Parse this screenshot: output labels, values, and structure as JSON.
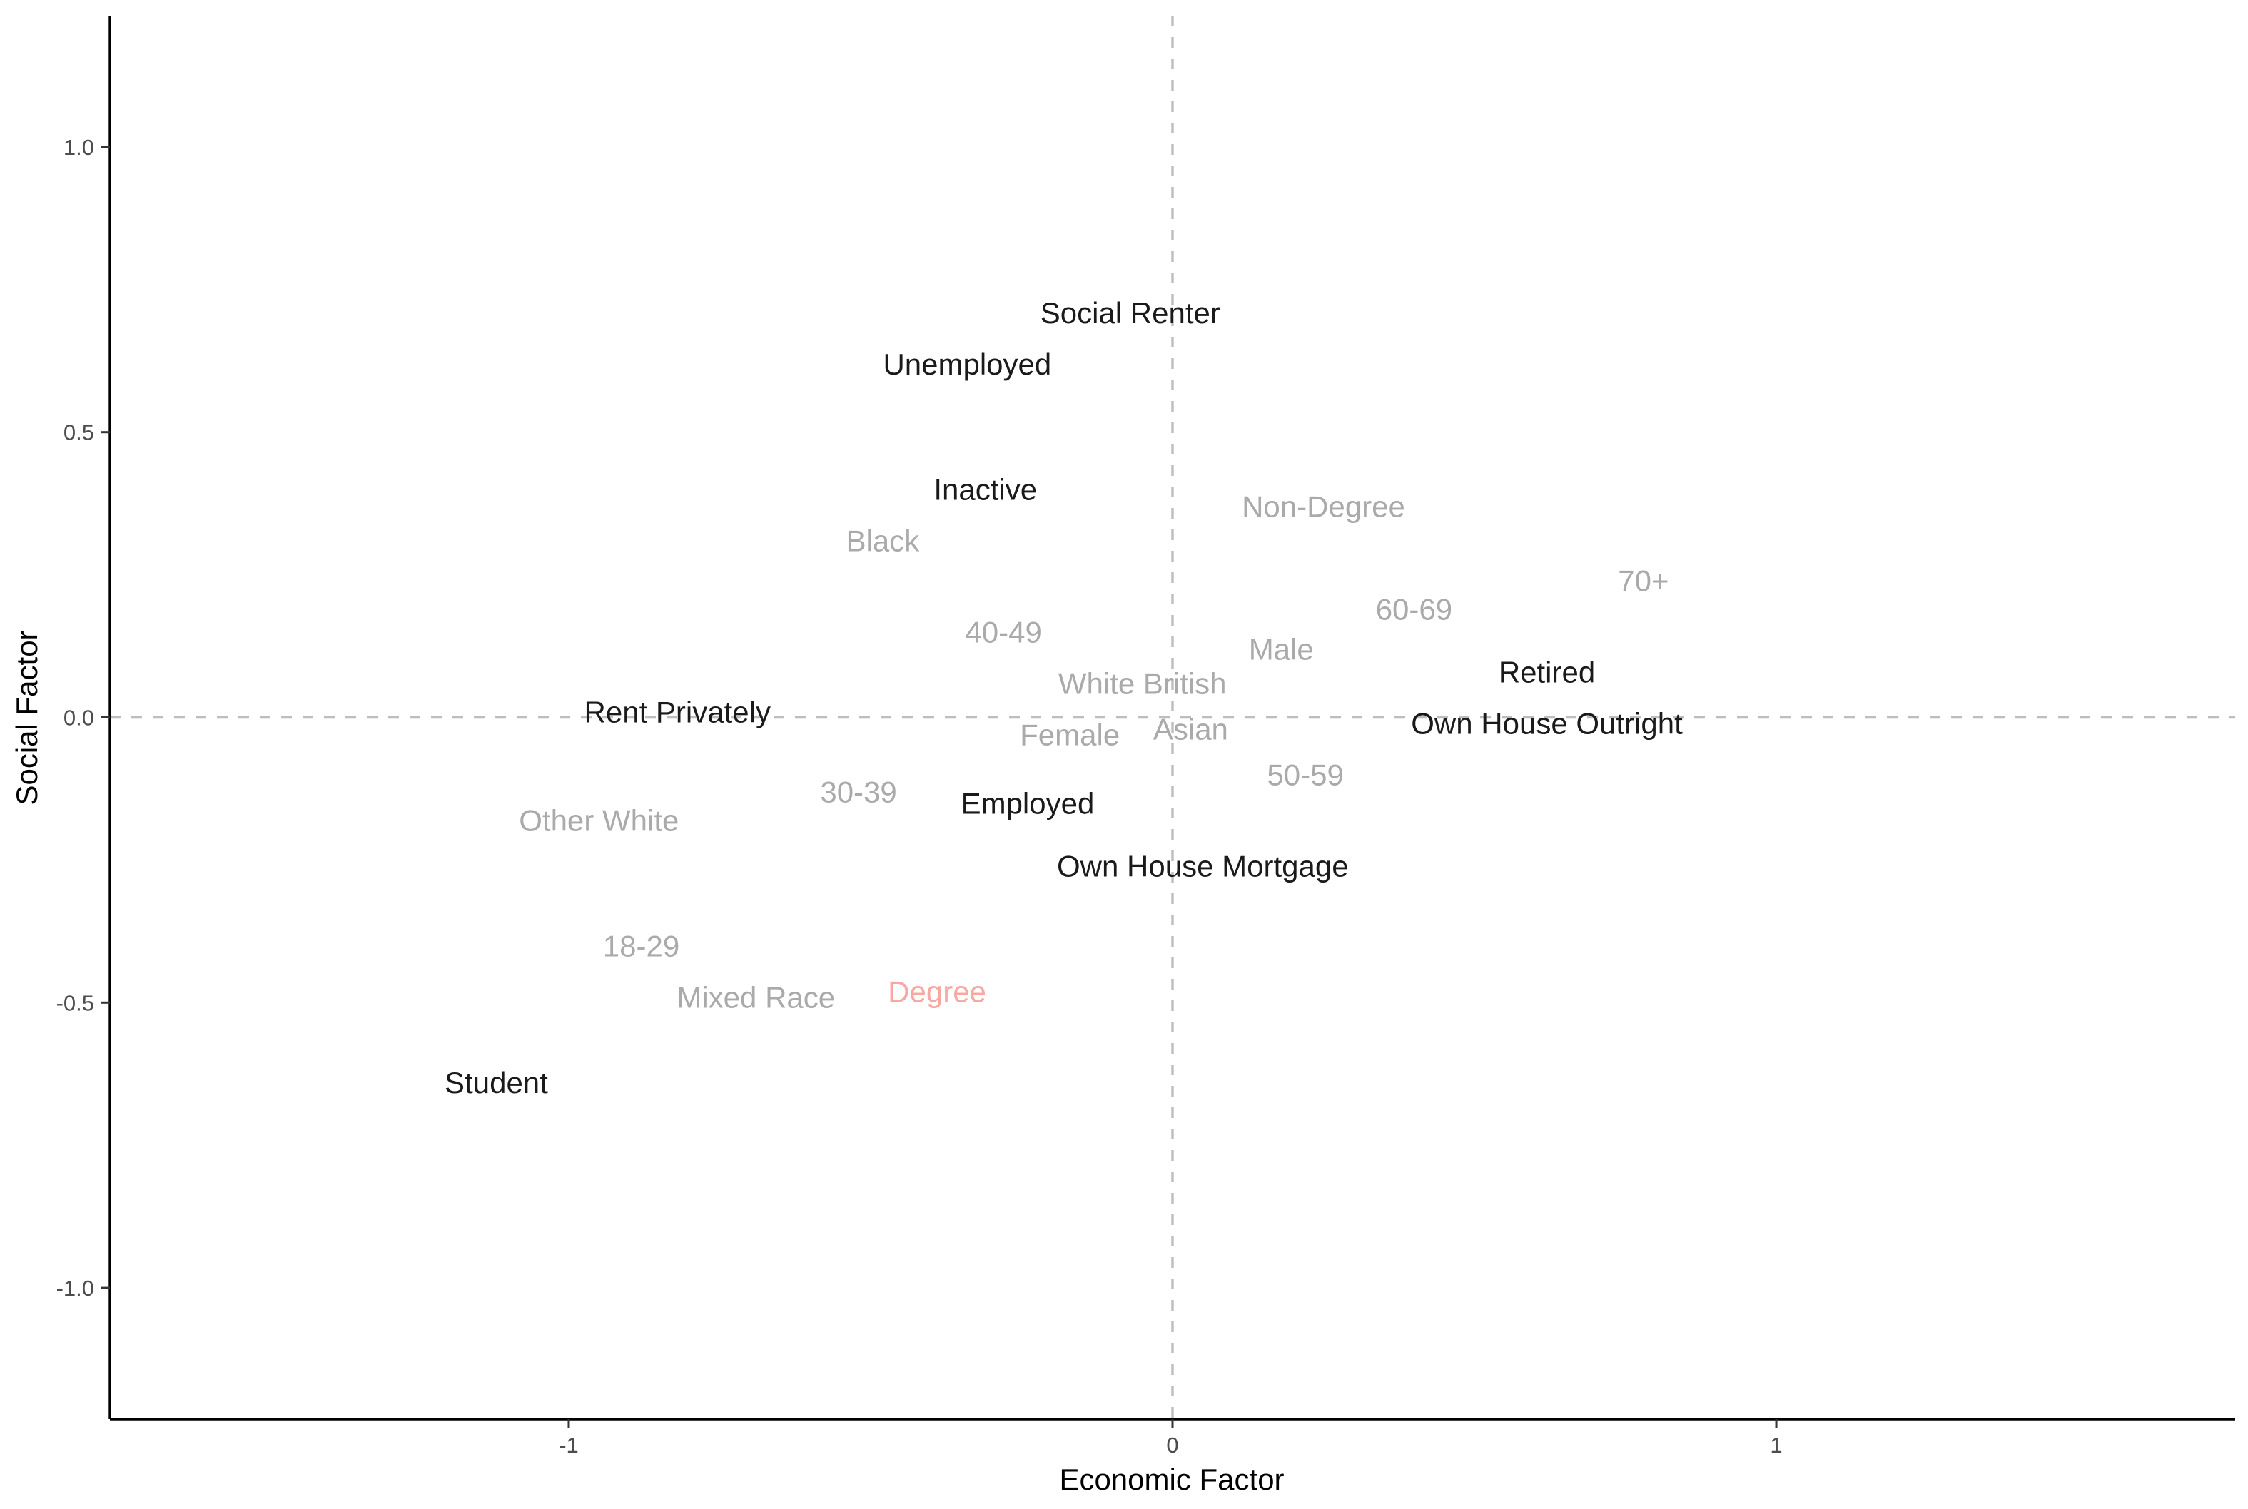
{
  "chart_data": {
    "type": "scatter",
    "xlabel": "Economic Factor",
    "ylabel": "Social Factor",
    "xlim": [
      -1.76,
      1.76
    ],
    "ylim": [
      -1.23,
      1.23
    ],
    "x_ticks": [
      -1,
      0,
      1
    ],
    "x_tick_labels": [
      "-1",
      "0",
      "1"
    ],
    "y_ticks": [
      -1.0,
      -0.5,
      0.0,
      0.5,
      1.0
    ],
    "y_tick_labels": [
      "-1.0",
      "-0.5",
      "0.0",
      "0.5",
      "1.0"
    ],
    "reference_lines": {
      "x": 0,
      "y": 0,
      "style": "dashed",
      "color": "#bdbdbd"
    },
    "grid": false,
    "colors": {
      "black_group": "#1a1a1a",
      "grey_group": "#aaaaaa",
      "highlight": "#f8a8a3"
    },
    "points": [
      {
        "label": "Social Renter",
        "x": -0.07,
        "y": 0.71,
        "group": "black_group"
      },
      {
        "label": "Unemployed",
        "x": -0.34,
        "y": 0.62,
        "group": "black_group"
      },
      {
        "label": "Inactive",
        "x": -0.31,
        "y": 0.4,
        "group": "black_group"
      },
      {
        "label": "Non-Degree",
        "x": 0.25,
        "y": 0.37,
        "group": "grey_group"
      },
      {
        "label": "Black",
        "x": -0.48,
        "y": 0.31,
        "group": "grey_group"
      },
      {
        "label": "70+",
        "x": 0.78,
        "y": 0.24,
        "group": "grey_group"
      },
      {
        "label": "60-69",
        "x": 0.4,
        "y": 0.19,
        "group": "grey_group"
      },
      {
        "label": "40-49",
        "x": -0.28,
        "y": 0.15,
        "group": "grey_group"
      },
      {
        "label": "Male",
        "x": 0.18,
        "y": 0.12,
        "group": "grey_group"
      },
      {
        "label": "Retired",
        "x": 0.62,
        "y": 0.08,
        "group": "black_group"
      },
      {
        "label": "White British",
        "x": -0.05,
        "y": 0.06,
        "group": "grey_group"
      },
      {
        "label": "Rent Privately",
        "x": -0.82,
        "y": 0.01,
        "group": "black_group"
      },
      {
        "label": "Own House Outright",
        "x": 0.62,
        "y": -0.01,
        "group": "black_group"
      },
      {
        "label": "Asian",
        "x": 0.03,
        "y": -0.02,
        "group": "grey_group"
      },
      {
        "label": "Female",
        "x": -0.17,
        "y": -0.03,
        "group": "grey_group"
      },
      {
        "label": "50-59",
        "x": 0.22,
        "y": -0.1,
        "group": "grey_group"
      },
      {
        "label": "30-39",
        "x": -0.52,
        "y": -0.13,
        "group": "grey_group"
      },
      {
        "label": "Employed",
        "x": -0.24,
        "y": -0.15,
        "group": "black_group"
      },
      {
        "label": "Other White",
        "x": -0.95,
        "y": -0.18,
        "group": "grey_group"
      },
      {
        "label": "Own House Mortgage",
        "x": 0.05,
        "y": -0.26,
        "group": "black_group"
      },
      {
        "label": "18-29",
        "x": -0.88,
        "y": -0.4,
        "group": "grey_group"
      },
      {
        "label": "Degree",
        "x": -0.39,
        "y": -0.48,
        "group": "highlight"
      },
      {
        "label": "Mixed Race",
        "x": -0.69,
        "y": -0.49,
        "group": "grey_group"
      },
      {
        "label": "Student",
        "x": -1.12,
        "y": -0.64,
        "group": "black_group"
      }
    ]
  }
}
